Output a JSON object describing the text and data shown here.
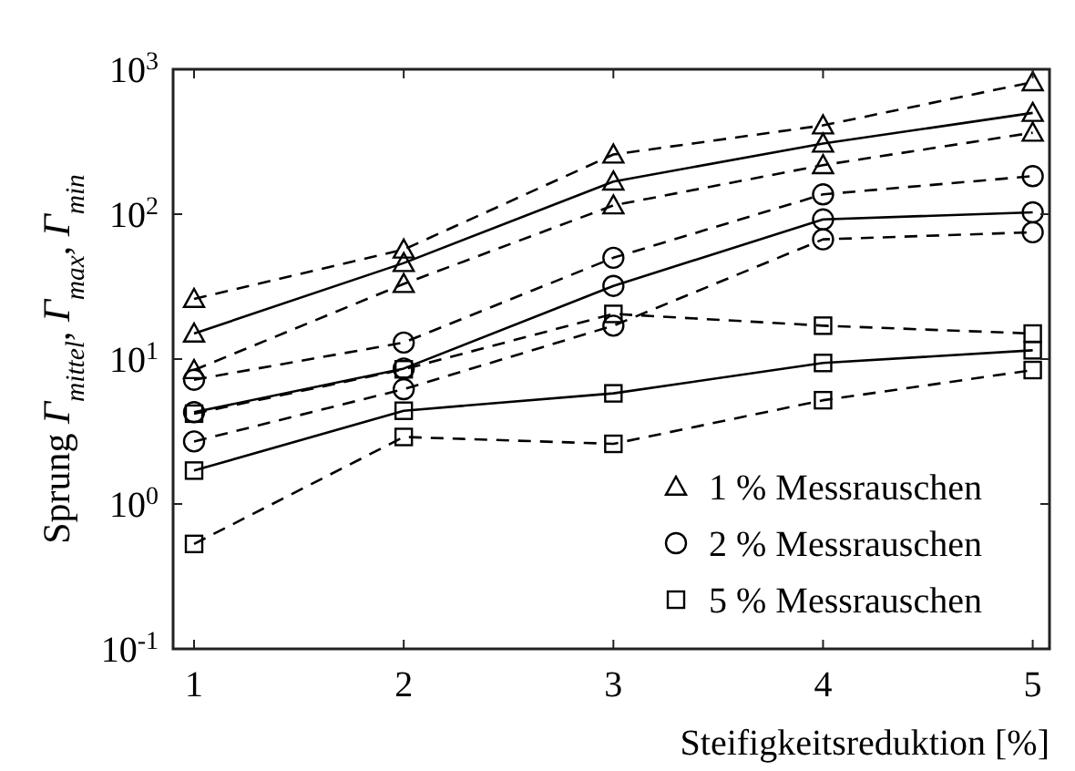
{
  "chart_data": {
    "type": "line",
    "xlabel": "Steifigkeitsreduktion [%]",
    "ylabel": "Sprung Γ$_{mittel}$, Γ$_{max}$, Γ$_{min}$",
    "x": [
      1,
      2,
      3,
      4,
      5
    ],
    "xlim": [
      0.9,
      5.08
    ],
    "xticks": [
      1,
      2,
      3,
      4,
      5
    ],
    "ylim": [
      0.1,
      1000
    ],
    "yticks": [
      {
        "value": 0.1,
        "label": "10$^{-1}$"
      },
      {
        "value": 1,
        "label": "10$^{0}$"
      },
      {
        "value": 10,
        "label": "10$^{1}$"
      },
      {
        "value": 100,
        "label": "10$^{2}$"
      },
      {
        "value": 1000,
        "label": "10$^{3}$"
      }
    ],
    "log": true,
    "grid": false,
    "legend": "bottom right",
    "series": [
      {
        "name": "1 % Messrauschen",
        "color": "#000000",
        "marker": "triangle",
        "line_style": "solid",
        "values": [
          15,
          46,
          168,
          307,
          500
        ]
      },
      {
        "color": "#000000",
        "marker": "triangle",
        "line_style": "dashed",
        "values": [
          26,
          57,
          258,
          410,
          815
        ]
      },
      {
        "color": "#000000",
        "marker": "triangle",
        "line_style": "dashed",
        "values": [
          8.4,
          33,
          115,
          218,
          365
        ]
      },
      {
        "name": "2 % Messrauschen",
        "color": "#000000",
        "marker": "circle",
        "line_style": "solid",
        "values": [
          4.3,
          8.6,
          32,
          92,
          103
        ]
      },
      {
        "color": "#000000",
        "marker": "circle",
        "line_style": "dashed",
        "values": [
          7.2,
          13,
          50,
          137,
          183
        ]
      },
      {
        "color": "#000000",
        "marker": "circle",
        "line_style": "dashed",
        "values": [
          2.7,
          6.2,
          17,
          67,
          75
        ]
      },
      {
        "name": "5 % Messrauschen",
        "color": "#000000",
        "marker": "square",
        "line_style": "solid",
        "values": [
          1.7,
          4.4,
          5.8,
          9.4,
          11.5
        ]
      },
      {
        "color": "#000000",
        "marker": "square",
        "line_style": "dashed",
        "values": [
          4.2,
          8.5,
          20.5,
          17,
          15
        ]
      },
      {
        "color": "#000000",
        "marker": "square",
        "line_style": "dashed",
        "values": [
          0.53,
          2.9,
          2.6,
          5.2,
          8.4
        ]
      }
    ]
  }
}
